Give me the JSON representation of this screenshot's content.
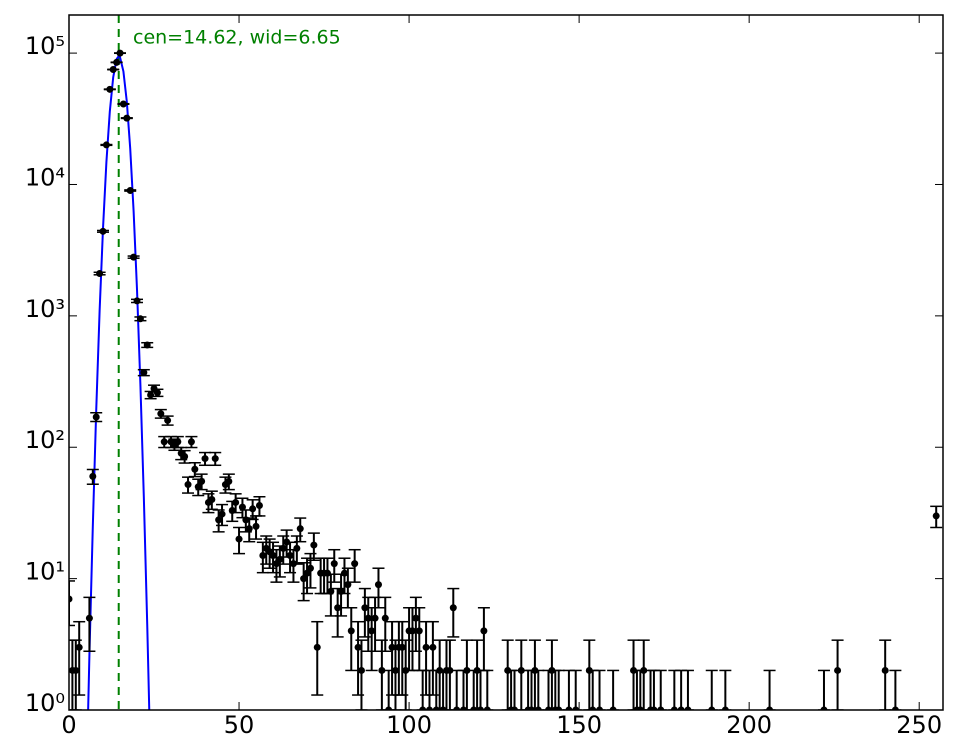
{
  "chart_data": {
    "type": "errorbar",
    "annotation": "cen=14.62, wid=6.65",
    "log_y": true,
    "xlim": [
      0,
      257
    ],
    "ylim": [
      1,
      195000
    ],
    "xticks": [
      0,
      50,
      100,
      150,
      200,
      250
    ],
    "yticks": [
      {
        "value": 1,
        "label": "10⁰"
      },
      {
        "value": 10,
        "label": "10¹"
      },
      {
        "value": 100,
        "label": "10²"
      },
      {
        "value": 1000,
        "label": "10³"
      },
      {
        "value": 10000,
        "label": "10⁴"
      },
      {
        "value": 100000,
        "label": "10⁵"
      }
    ],
    "color": "#000000",
    "x": [
      0,
      1,
      2,
      3,
      6,
      7,
      8,
      9,
      10,
      11,
      12,
      13,
      14,
      15,
      16,
      17,
      18,
      19,
      20,
      21,
      22,
      23,
      24,
      25,
      26,
      27,
      28,
      29,
      30,
      31,
      32,
      33,
      34,
      35,
      36,
      37,
      38,
      39,
      40,
      41,
      42,
      43,
      44,
      45,
      46,
      47,
      48,
      49,
      50,
      51,
      52,
      53,
      54,
      55,
      56,
      57,
      58,
      59,
      60,
      61,
      62,
      63,
      64,
      65,
      66,
      67,
      68,
      69,
      70,
      71,
      72,
      73,
      74,
      75,
      76,
      77,
      78,
      79,
      80,
      81,
      82,
      83,
      84,
      85,
      86,
      87,
      88,
      89,
      90,
      91,
      92,
      93,
      94,
      95,
      96,
      97,
      98,
      99,
      100,
      101,
      102,
      103,
      104,
      105,
      106,
      107,
      108,
      109,
      110,
      111,
      112,
      113,
      114,
      116,
      117,
      119,
      120,
      121,
      122,
      123,
      129,
      130,
      131,
      133,
      135,
      136,
      137,
      138,
      141,
      142,
      143,
      144,
      147,
      149,
      153,
      154,
      156,
      160,
      166,
      167,
      168,
      169,
      171,
      172,
      174,
      178,
      180,
      182,
      189,
      193,
      206,
      222,
      226,
      240,
      243,
      255
    ],
    "values": [
      7,
      2,
      2,
      3,
      5,
      60,
      170,
      2100,
      4400,
      20000,
      53000,
      75000,
      85000,
      100000,
      41000,
      32000,
      9000,
      2800,
      1300,
      950,
      370,
      600,
      250,
      280,
      260,
      180,
      110,
      160,
      110,
      105,
      110,
      90,
      85,
      52,
      110,
      68,
      50,
      55,
      82,
      38,
      40,
      82,
      28,
      31,
      52,
      55,
      33,
      38,
      20,
      35,
      28,
      24,
      34,
      25,
      36,
      15,
      17,
      16,
      15,
      13,
      14,
      17,
      19,
      15,
      13,
      17,
      24,
      10,
      11,
      12,
      18,
      3,
      11,
      11,
      11,
      8,
      13,
      6,
      8,
      11,
      9,
      4,
      13,
      3,
      2,
      6,
      5,
      4,
      5,
      9,
      2,
      5,
      1,
      3,
      2,
      3,
      3,
      2,
      4,
      4,
      5,
      4,
      1,
      3,
      1,
      3,
      1,
      2,
      1,
      2,
      2,
      6,
      1,
      1,
      2,
      1,
      2,
      1,
      4,
      1,
      2,
      1,
      1,
      2,
      1,
      1,
      2,
      1,
      1,
      2,
      1,
      1,
      1,
      1,
      2,
      1,
      1,
      1,
      2,
      1,
      1,
      2,
      1,
      1,
      1,
      1,
      1,
      1,
      1,
      1,
      1,
      1,
      2,
      2,
      1,
      30
    ],
    "errors": [
      2.6,
      1.4,
      1.4,
      1.7,
      2.2,
      7.7,
      13,
      46,
      66,
      141,
      230,
      274,
      292,
      316,
      202,
      179,
      95,
      53,
      36,
      30.8,
      19.2,
      24.5,
      15.8,
      16.7,
      16.1,
      13.4,
      10.5,
      12.6,
      10.5,
      10.2,
      10.5,
      9.5,
      9.2,
      7.2,
      10.5,
      8.2,
      7.1,
      7.4,
      9.1,
      6.2,
      6.3,
      9.1,
      5.3,
      5.6,
      7.2,
      7.4,
      5.7,
      6.2,
      4.5,
      5.9,
      5.3,
      4.9,
      5.8,
      5,
      6,
      3.9,
      4.1,
      4,
      3.9,
      3.6,
      3.7,
      4.1,
      4.4,
      3.9,
      3.6,
      4.1,
      4.9,
      3.2,
      3.3,
      3.5,
      4.2,
      1.7,
      3.3,
      3.3,
      3.3,
      2.8,
      3.6,
      2.4,
      2.8,
      3.3,
      3,
      2,
      3.6,
      1.7,
      1.4,
      2.4,
      2.2,
      2,
      2.2,
      3,
      1.4,
      2.2,
      1,
      1.7,
      1.4,
      1.7,
      1.7,
      1.4,
      2,
      2,
      2.2,
      2,
      1,
      1.7,
      1,
      1.7,
      1,
      1.4,
      1,
      1.4,
      1.4,
      2.4,
      1,
      1,
      1.4,
      1,
      1.4,
      1,
      2,
      1,
      1.4,
      1,
      1,
      1.4,
      1,
      1,
      1.4,
      1,
      1,
      1.4,
      1,
      1,
      1,
      1,
      1.4,
      1,
      1,
      1,
      1.4,
      1,
      1,
      1.4,
      1,
      1,
      1,
      1,
      1,
      1,
      1,
      1,
      1,
      1,
      1.4,
      1.4,
      1,
      5.5
    ],
    "fit": {
      "color": "#0000ff",
      "x": [
        5.6,
        6,
        7,
        8,
        9,
        10,
        11,
        12,
        13,
        14,
        14.62,
        15,
        16,
        17,
        18,
        19,
        20,
        21,
        22,
        23,
        23.6
      ],
      "values": [
        0.93,
        2.6,
        25,
        190,
        1090,
        4630,
        14850,
        35950,
        65500,
        90000,
        95000,
        93100,
        72500,
        42700,
        18800,
        6260,
        1577,
        296,
        42,
        4.5,
        1.0
      ]
    },
    "center_line": {
      "value": 14.62,
      "color": "#008000"
    }
  }
}
